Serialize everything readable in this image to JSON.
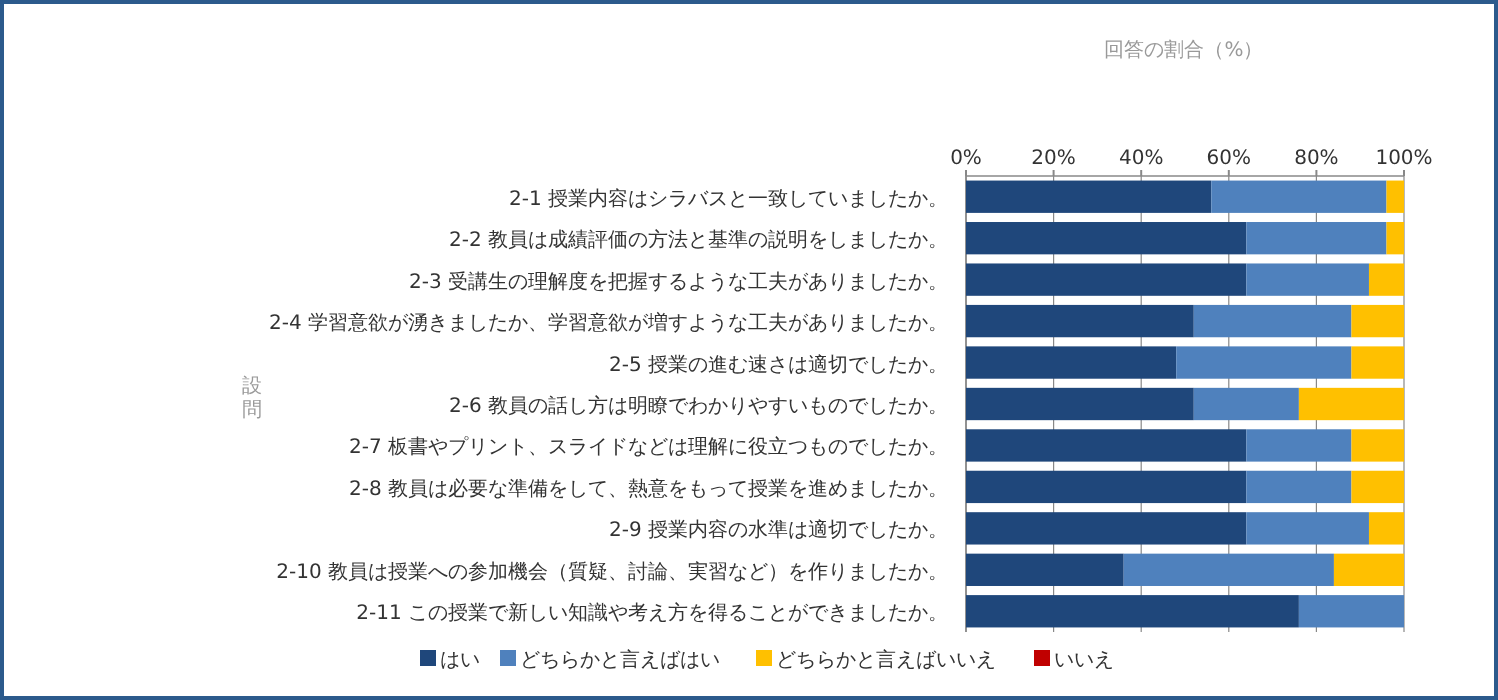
{
  "chart_data": {
    "type": "bar",
    "orientation": "horizontal",
    "stacked": true,
    "xlabel": "回答の割合（%）",
    "ylabel": "設問",
    "categories": [
      "2-1 授業内容はシラバスと一致していましたか。",
      "2-2 教員は成績評価の方法と基準の説明をしましたか。",
      "2-3 受講生の理解度を把握するような工夫がありましたか。",
      "2-4 学習意欲が湧きましたか、学習意欲が増すような工夫がありましたか。",
      "2-5 授業の進む速さは適切でしたか。",
      "2-6 教員の話し方は明瞭でわかりやすいものでしたか。",
      "2-7 板書やプリント、スライドなどは理解に役立つものでしたか。",
      "2-8 教員は必要な準備をして、熱意をもって授業を進めましたか。",
      "2-9 授業内容の水準は適切でしたか。",
      "2-10 教員は授業への参加機会（質疑、討論、実習など）を作りましたか。",
      "2-11 この授業で新しい知識や考え方を得ることができましたか。"
    ],
    "series": [
      {
        "name": "はい",
        "color": "#1f477b",
        "values": [
          56,
          64,
          64,
          52,
          48,
          52,
          64,
          64,
          64,
          36,
          76
        ]
      },
      {
        "name": "どちらかと言えばはい",
        "color": "#4f81bd",
        "values": [
          40,
          32,
          28,
          36,
          40,
          24,
          24,
          24,
          28,
          48,
          24
        ]
      },
      {
        "name": "どちらかと言えばいいえ",
        "color": "#ffc000",
        "values": [
          4,
          4,
          8,
          12,
          12,
          24,
          12,
          12,
          8,
          16,
          0
        ]
      },
      {
        "name": "いいえ",
        "color": "#c00000",
        "values": [
          0,
          0,
          0,
          0,
          0,
          0,
          0,
          0,
          0,
          0,
          0
        ]
      }
    ],
    "xlim": [
      0,
      100
    ],
    "xticks": [
      {
        "value": 0,
        "label": "0%"
      },
      {
        "value": 20,
        "label": "20%"
      },
      {
        "value": 40,
        "label": "40%"
      },
      {
        "value": 60,
        "label": "60%"
      },
      {
        "value": 80,
        "label": "80%"
      },
      {
        "value": 100,
        "label": "100%"
      }
    ],
    "grid": "x",
    "legend": "bottom"
  }
}
